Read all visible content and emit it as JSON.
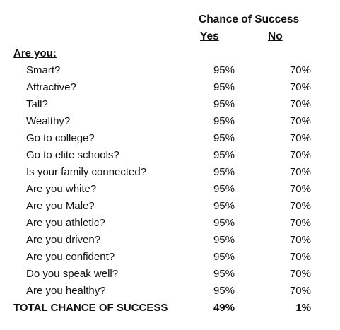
{
  "header": {
    "title": "Chance of Success",
    "yes_label": "Yes",
    "no_label": "No"
  },
  "section_label": "Are you:",
  "rows": [
    {
      "question": "Smart?",
      "yes": "95%",
      "no": "70%"
    },
    {
      "question": "Attractive?",
      "yes": "95%",
      "no": "70%"
    },
    {
      "question": "Tall?",
      "yes": "95%",
      "no": "70%"
    },
    {
      "question": "Wealthy?",
      "yes": "95%",
      "no": "70%"
    },
    {
      "question": "Go to college?",
      "yes": "95%",
      "no": "70%"
    },
    {
      "question": "Go to elite schools?",
      "yes": "95%",
      "no": "70%"
    },
    {
      "question": "Is your family connected?",
      "yes": "95%",
      "no": "70%"
    },
    {
      "question": "Are you white?",
      "yes": "95%",
      "no": "70%"
    },
    {
      "question": "Are you Male?",
      "yes": "95%",
      "no": "70%"
    },
    {
      "question": "Are you athletic?",
      "yes": "95%",
      "no": "70%"
    },
    {
      "question": "Are you driven?",
      "yes": "95%",
      "no": "70%"
    },
    {
      "question": "Are you confident?",
      "yes": "95%",
      "no": "70%"
    },
    {
      "question": "Do you speak well?",
      "yes": "95%",
      "no": "70%"
    },
    {
      "question": "Are you healthy?",
      "yes": "95%",
      "no": "70%"
    }
  ],
  "total": {
    "label": "TOTAL CHANCE OF SUCCESS",
    "yes": "49%",
    "no": "1%"
  }
}
